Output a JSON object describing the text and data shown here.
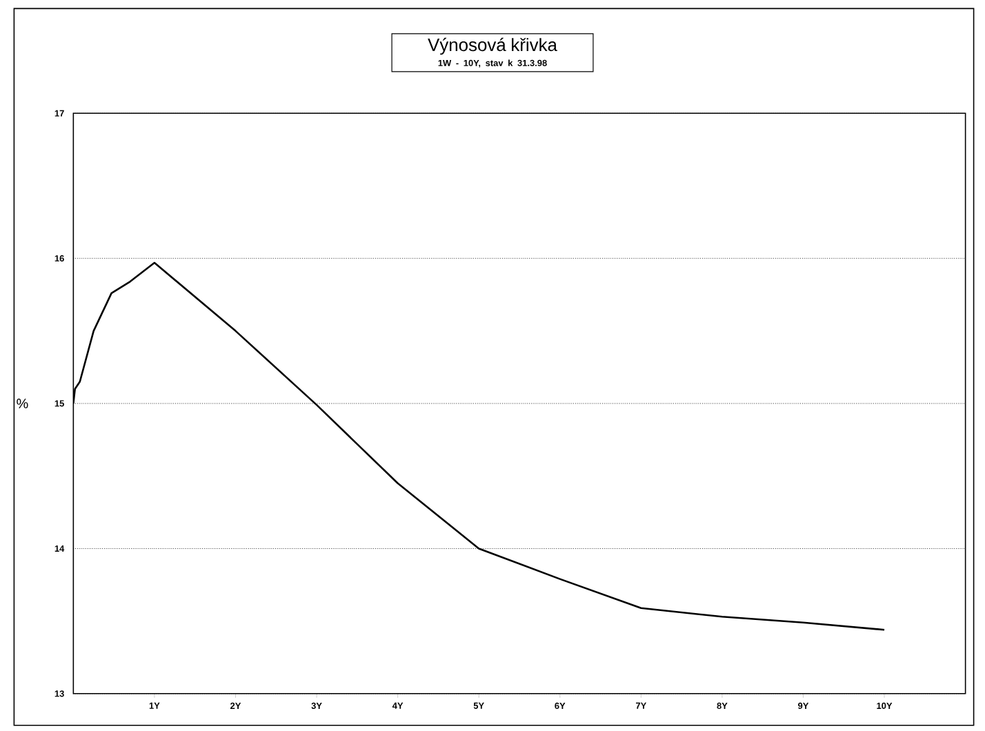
{
  "chart_data": {
    "type": "line",
    "title": "Výnosová křivka",
    "subtitle": "1W - 10Y, stav k 31.3.98",
    "ylabel": "%",
    "x": [
      0,
      0.02,
      0.08,
      0.25,
      0.47,
      0.7,
      1,
      2,
      3,
      4,
      5,
      6,
      7,
      8,
      9,
      10
    ],
    "series": [
      {
        "color": "#000000",
        "values": [
          15.0,
          15.1,
          15.15,
          15.5,
          15.76,
          15.84,
          15.97,
          15.5,
          14.99,
          14.45,
          14.0,
          13.79,
          13.59,
          13.53,
          13.49,
          13.44
        ]
      }
    ],
    "xlim": [
      0,
      11
    ],
    "xticks": [
      {
        "value": 1,
        "label": "1Y"
      },
      {
        "value": 2,
        "label": "2Y"
      },
      {
        "value": 3,
        "label": "3Y"
      },
      {
        "value": 4,
        "label": "4Y"
      },
      {
        "value": 5,
        "label": "5Y"
      },
      {
        "value": 6,
        "label": "6Y"
      },
      {
        "value": 7,
        "label": "7Y"
      },
      {
        "value": 8,
        "label": "8Y"
      },
      {
        "value": 9,
        "label": "9Y"
      },
      {
        "value": 10,
        "label": "10Y"
      }
    ],
    "ylim": [
      13,
      17
    ],
    "yticks": [
      13,
      14,
      15,
      16,
      17
    ],
    "grid": "y",
    "marker": "none",
    "line_style": "solid"
  }
}
